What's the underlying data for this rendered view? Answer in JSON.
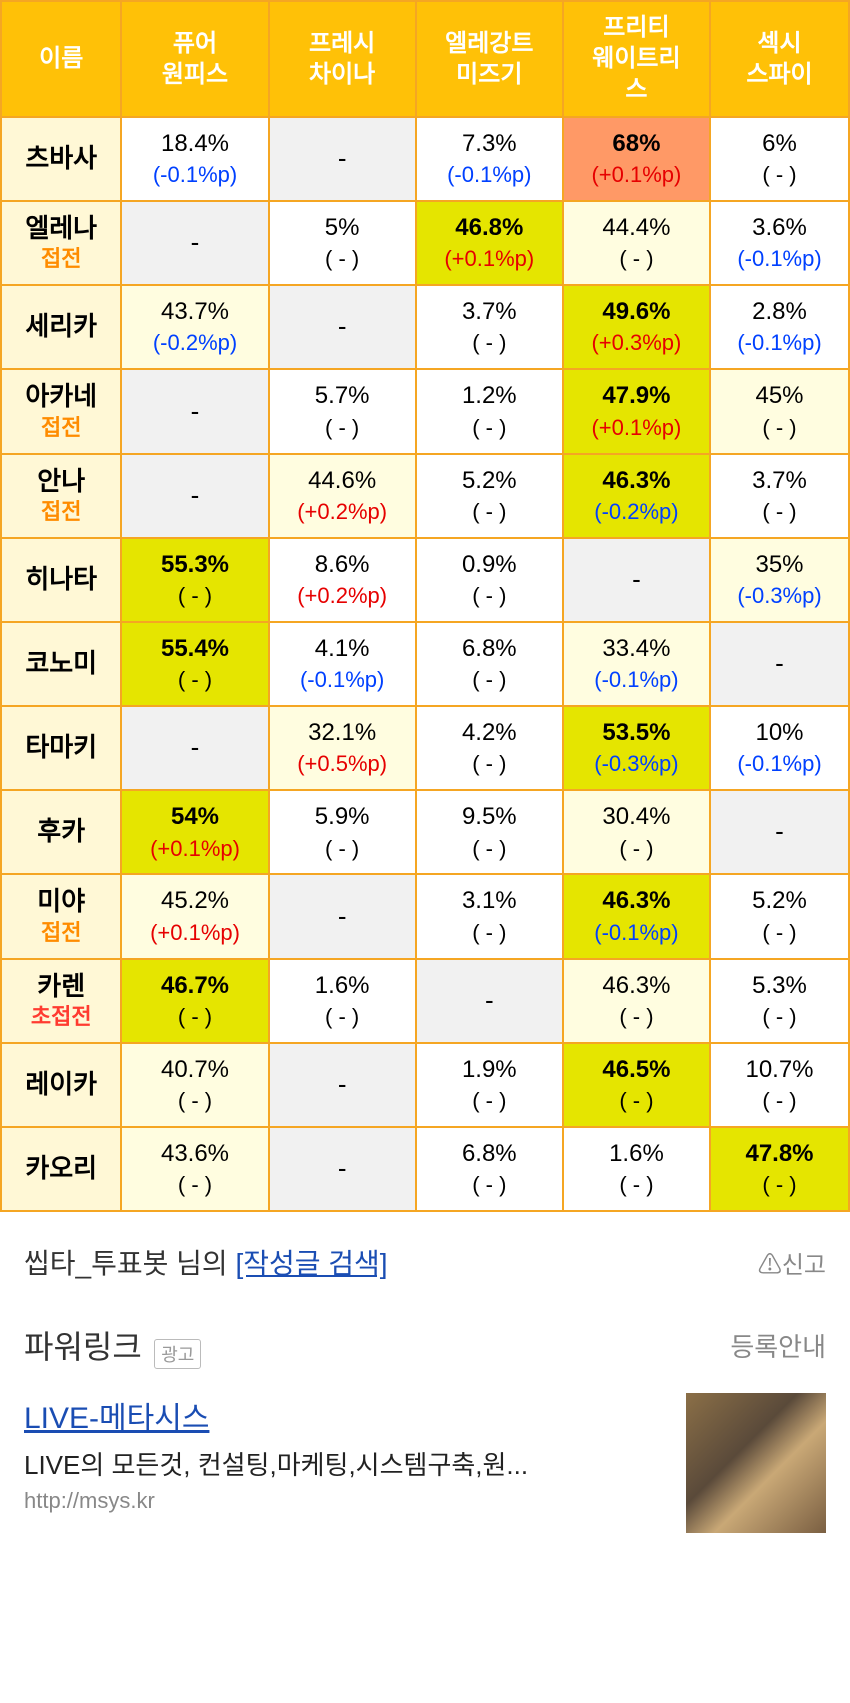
{
  "table": {
    "name_header": "이름",
    "columns": [
      "퓨어\n원피스",
      "프레시\n차이나",
      "엘레강트\n미즈기",
      "프리티\n웨이트리\n스",
      "섹시\n스파이"
    ],
    "rows": [
      {
        "name": "츠바사",
        "sub": "",
        "cells": [
          {
            "pct": "18.4%",
            "delta": "(-0.1%p)",
            "dir": "down",
            "bg": "none",
            "bold": false
          },
          {
            "pct": "-",
            "delta": "",
            "dir": "dash",
            "bg": "gray",
            "bold": false
          },
          {
            "pct": "7.3%",
            "delta": "(-0.1%p)",
            "dir": "down",
            "bg": "none",
            "bold": false
          },
          {
            "pct": "68%",
            "delta": "(+0.1%p)",
            "dir": "up",
            "bg": "orange",
            "bold": true
          },
          {
            "pct": "6%",
            "delta": "( - )",
            "dir": "none",
            "bg": "none",
            "bold": false
          }
        ]
      },
      {
        "name": "엘레나",
        "sub": "접전",
        "subcls": "battle",
        "cells": [
          {
            "pct": "-",
            "delta": "",
            "dir": "dash",
            "bg": "gray",
            "bold": false
          },
          {
            "pct": "5%",
            "delta": "( - )",
            "dir": "none",
            "bg": "none",
            "bold": false
          },
          {
            "pct": "46.8%",
            "delta": "(+0.1%p)",
            "dir": "up",
            "bg": "yellow",
            "bold": true
          },
          {
            "pct": "44.4%",
            "delta": "( - )",
            "dir": "none",
            "bg": "pale",
            "bold": false
          },
          {
            "pct": "3.6%",
            "delta": "(-0.1%p)",
            "dir": "down",
            "bg": "none",
            "bold": false
          }
        ]
      },
      {
        "name": "세리카",
        "sub": "",
        "cells": [
          {
            "pct": "43.7%",
            "delta": "(-0.2%p)",
            "dir": "down",
            "bg": "pale",
            "bold": false
          },
          {
            "pct": "-",
            "delta": "",
            "dir": "dash",
            "bg": "gray",
            "bold": false
          },
          {
            "pct": "3.7%",
            "delta": "( - )",
            "dir": "none",
            "bg": "none",
            "bold": false
          },
          {
            "pct": "49.6%",
            "delta": "(+0.3%p)",
            "dir": "up",
            "bg": "yellow",
            "bold": true
          },
          {
            "pct": "2.8%",
            "delta": "(-0.1%p)",
            "dir": "down",
            "bg": "none",
            "bold": false
          }
        ]
      },
      {
        "name": "아카네",
        "sub": "접전",
        "subcls": "battle",
        "cells": [
          {
            "pct": "-",
            "delta": "",
            "dir": "dash",
            "bg": "gray",
            "bold": false
          },
          {
            "pct": "5.7%",
            "delta": "( - )",
            "dir": "none",
            "bg": "none",
            "bold": false
          },
          {
            "pct": "1.2%",
            "delta": "( - )",
            "dir": "none",
            "bg": "none",
            "bold": false
          },
          {
            "pct": "47.9%",
            "delta": "(+0.1%p)",
            "dir": "up",
            "bg": "yellow",
            "bold": true
          },
          {
            "pct": "45%",
            "delta": "( - )",
            "dir": "none",
            "bg": "pale",
            "bold": false
          }
        ]
      },
      {
        "name": "안나",
        "sub": "접전",
        "subcls": "battle",
        "cells": [
          {
            "pct": "-",
            "delta": "",
            "dir": "dash",
            "bg": "gray",
            "bold": false
          },
          {
            "pct": "44.6%",
            "delta": "(+0.2%p)",
            "dir": "up",
            "bg": "pale",
            "bold": false
          },
          {
            "pct": "5.2%",
            "delta": "( - )",
            "dir": "none",
            "bg": "none",
            "bold": false
          },
          {
            "pct": "46.3%",
            "delta": "(-0.2%p)",
            "dir": "down",
            "bg": "yellow",
            "bold": true
          },
          {
            "pct": "3.7%",
            "delta": "( - )",
            "dir": "none",
            "bg": "none",
            "bold": false
          }
        ]
      },
      {
        "name": "히나타",
        "sub": "",
        "cells": [
          {
            "pct": "55.3%",
            "delta": "( - )",
            "dir": "none",
            "bg": "yellow",
            "bold": true
          },
          {
            "pct": "8.6%",
            "delta": "(+0.2%p)",
            "dir": "up",
            "bg": "none",
            "bold": false
          },
          {
            "pct": "0.9%",
            "delta": "( - )",
            "dir": "none",
            "bg": "none",
            "bold": false
          },
          {
            "pct": "-",
            "delta": "",
            "dir": "dash",
            "bg": "gray",
            "bold": false
          },
          {
            "pct": "35%",
            "delta": "(-0.3%p)",
            "dir": "down",
            "bg": "pale",
            "bold": false
          }
        ]
      },
      {
        "name": "코노미",
        "sub": "",
        "cells": [
          {
            "pct": "55.4%",
            "delta": "( - )",
            "dir": "none",
            "bg": "yellow",
            "bold": true
          },
          {
            "pct": "4.1%",
            "delta": "(-0.1%p)",
            "dir": "down",
            "bg": "none",
            "bold": false
          },
          {
            "pct": "6.8%",
            "delta": "( - )",
            "dir": "none",
            "bg": "none",
            "bold": false
          },
          {
            "pct": "33.4%",
            "delta": "(-0.1%p)",
            "dir": "down",
            "bg": "pale",
            "bold": false
          },
          {
            "pct": "-",
            "delta": "",
            "dir": "dash",
            "bg": "gray",
            "bold": false
          }
        ]
      },
      {
        "name": "타마키",
        "sub": "",
        "cells": [
          {
            "pct": "-",
            "delta": "",
            "dir": "dash",
            "bg": "gray",
            "bold": false
          },
          {
            "pct": "32.1%",
            "delta": "(+0.5%p)",
            "dir": "up",
            "bg": "pale",
            "bold": false
          },
          {
            "pct": "4.2%",
            "delta": "( - )",
            "dir": "none",
            "bg": "none",
            "bold": false
          },
          {
            "pct": "53.5%",
            "delta": "(-0.3%p)",
            "dir": "down",
            "bg": "yellow",
            "bold": true
          },
          {
            "pct": "10%",
            "delta": "(-0.1%p)",
            "dir": "down",
            "bg": "none",
            "bold": false
          }
        ]
      },
      {
        "name": "후카",
        "sub": "",
        "cells": [
          {
            "pct": "54%",
            "delta": "(+0.1%p)",
            "dir": "up",
            "bg": "yellow",
            "bold": true
          },
          {
            "pct": "5.9%",
            "delta": "( - )",
            "dir": "none",
            "bg": "none",
            "bold": false
          },
          {
            "pct": "9.5%",
            "delta": "( - )",
            "dir": "none",
            "bg": "none",
            "bold": false
          },
          {
            "pct": "30.4%",
            "delta": "( - )",
            "dir": "none",
            "bg": "pale",
            "bold": false
          },
          {
            "pct": "-",
            "delta": "",
            "dir": "dash",
            "bg": "gray",
            "bold": false
          }
        ]
      },
      {
        "name": "미야",
        "sub": "접전",
        "subcls": "battle",
        "cells": [
          {
            "pct": "45.2%",
            "delta": "(+0.1%p)",
            "dir": "up",
            "bg": "pale",
            "bold": false
          },
          {
            "pct": "-",
            "delta": "",
            "dir": "dash",
            "bg": "gray",
            "bold": false
          },
          {
            "pct": "3.1%",
            "delta": "( - )",
            "dir": "none",
            "bg": "none",
            "bold": false
          },
          {
            "pct": "46.3%",
            "delta": "(-0.1%p)",
            "dir": "down",
            "bg": "yellow",
            "bold": true
          },
          {
            "pct": "5.2%",
            "delta": "( - )",
            "dir": "none",
            "bg": "none",
            "bold": false
          }
        ]
      },
      {
        "name": "카렌",
        "sub": "초접전",
        "subcls": "super",
        "cells": [
          {
            "pct": "46.7%",
            "delta": "( - )",
            "dir": "none",
            "bg": "yellow",
            "bold": true
          },
          {
            "pct": "1.6%",
            "delta": "( - )",
            "dir": "none",
            "bg": "none",
            "bold": false
          },
          {
            "pct": "-",
            "delta": "",
            "dir": "dash",
            "bg": "gray",
            "bold": false
          },
          {
            "pct": "46.3%",
            "delta": "( - )",
            "dir": "none",
            "bg": "pale",
            "bold": false
          },
          {
            "pct": "5.3%",
            "delta": "( - )",
            "dir": "none",
            "bg": "none",
            "bold": false
          }
        ]
      },
      {
        "name": "레이카",
        "sub": "",
        "cells": [
          {
            "pct": "40.7%",
            "delta": "( - )",
            "dir": "none",
            "bg": "pale",
            "bold": false
          },
          {
            "pct": "-",
            "delta": "",
            "dir": "dash",
            "bg": "gray",
            "bold": false
          },
          {
            "pct": "1.9%",
            "delta": "( - )",
            "dir": "none",
            "bg": "none",
            "bold": false
          },
          {
            "pct": "46.5%",
            "delta": "( - )",
            "dir": "none",
            "bg": "yellow",
            "bold": true
          },
          {
            "pct": "10.7%",
            "delta": "( - )",
            "dir": "none",
            "bg": "none",
            "bold": false
          }
        ]
      },
      {
        "name": "카오리",
        "sub": "",
        "cells": [
          {
            "pct": "43.6%",
            "delta": "( - )",
            "dir": "none",
            "bg": "pale",
            "bold": false
          },
          {
            "pct": "-",
            "delta": "",
            "dir": "dash",
            "bg": "gray",
            "bold": false
          },
          {
            "pct": "6.8%",
            "delta": "( - )",
            "dir": "none",
            "bg": "none",
            "bold": false
          },
          {
            "pct": "1.6%",
            "delta": "( - )",
            "dir": "none",
            "bg": "none",
            "bold": false
          },
          {
            "pct": "47.8%",
            "delta": "( - )",
            "dir": "none",
            "bg": "yellow",
            "bold": true
          }
        ]
      }
    ]
  },
  "footer": {
    "author_prefix": "씹타_투표봇 님의 ",
    "search_link": "[작성글 검색]",
    "report": "신고",
    "power_title": "파워링크",
    "ad_badge": "광고",
    "register": "등록안내",
    "ad_link": "LIVE-메타시스",
    "ad_desc": "LIVE의 모든것, 컨설팅,마케팅,시스템구축,원...",
    "ad_url": "http://msys.kr"
  }
}
